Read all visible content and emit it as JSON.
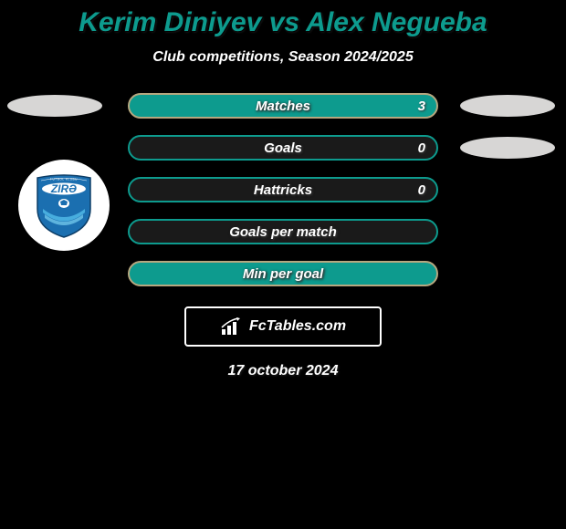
{
  "title": "Kerim Diniyev vs Alex Negueba",
  "subtitle": "Club competitions, Season 2024/2025",
  "colors": {
    "background": "#000000",
    "title": "#0d9b8e",
    "text": "#ffffff",
    "badge_gray": "#d7d6d5",
    "bar_border_teal": "#0d9b8e",
    "bar_border_gray": "#b6a77f",
    "bar_fill_teal": "#0d9b8e",
    "bar_fill_dark": "#1a1a1a"
  },
  "rows": [
    {
      "label": "Matches",
      "left": "",
      "right": "3",
      "fill": "teal",
      "left_badge": true,
      "right_badge": true
    },
    {
      "label": "Goals",
      "left": "",
      "right": "0",
      "fill": "gray",
      "left_badge": false,
      "right_badge": true
    },
    {
      "label": "Hattricks",
      "left": "",
      "right": "0",
      "fill": "gray",
      "left_badge": false,
      "right_badge": false
    },
    {
      "label": "Goals per match",
      "left": "",
      "right": "",
      "fill": "gray",
      "left_badge": false,
      "right_badge": false
    },
    {
      "label": "Min per goal",
      "left": "",
      "right": "",
      "fill": "teal",
      "left_badge": false,
      "right_badge": false
    }
  ],
  "logo": {
    "name": "ZIRƏ",
    "subtext": "FUTBOL KLUBU"
  },
  "fctables": "FcTables.com",
  "date": "17 october 2024"
}
